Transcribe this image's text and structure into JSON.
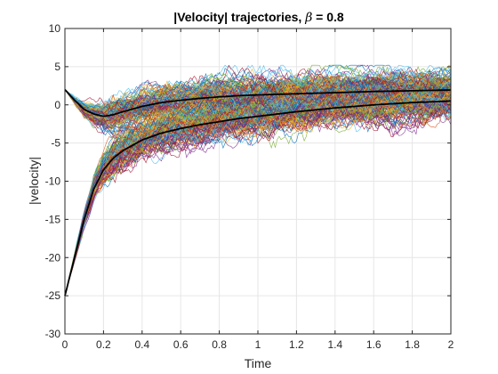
{
  "chart_data": {
    "type": "line",
    "title": {
      "prefix": "|Velocity| trajectories, ",
      "symbol": "β",
      "suffix": " = 0.8"
    },
    "xlabel": "Time",
    "ylabel": "|velocity|",
    "xlim": [
      0,
      2
    ],
    "ylim": [
      -30,
      10
    ],
    "xticks": [
      0,
      0.2,
      0.4,
      0.6,
      0.8,
      1,
      1.2,
      1.4,
      1.6,
      1.8,
      2
    ],
    "yticks": [
      -30,
      -25,
      -20,
      -15,
      -10,
      -5,
      0,
      5,
      10
    ],
    "xtick_labels": [
      "0",
      "0.2",
      "0.4",
      "0.6",
      "0.8",
      "1",
      "1.2",
      "1.4",
      "1.6",
      "1.8",
      "2"
    ],
    "ytick_labels": [
      "-30",
      "-25",
      "-20",
      "-15",
      "-10",
      "-5",
      "0",
      "5",
      "10"
    ],
    "grid": true,
    "colors": {
      "palette": [
        "#0072BD",
        "#D95319",
        "#EDB120",
        "#7E2F8E",
        "#77AC30",
        "#4DBEEE",
        "#A2142F"
      ],
      "mean": "#000000",
      "axis": "#262626",
      "grid": "#e6e6e6"
    },
    "bundles": [
      {
        "count": 120,
        "noise_amp": 1.1,
        "mean": {
          "x": [
            0,
            0.05,
            0.1,
            0.15,
            0.2,
            0.25,
            0.3,
            0.4,
            0.5,
            0.6,
            0.7,
            0.8,
            0.9,
            1.0,
            1.2,
            1.4,
            1.6,
            1.8,
            2.0
          ],
          "y": [
            2.0,
            0.6,
            -0.6,
            -1.2,
            -1.5,
            -1.3,
            -0.9,
            -0.2,
            0.3,
            0.6,
            0.85,
            1.05,
            1.2,
            1.3,
            1.45,
            1.6,
            1.75,
            1.85,
            1.95
          ]
        }
      },
      {
        "count": 120,
        "noise_amp": 1.3,
        "mean": {
          "x": [
            0,
            0.05,
            0.1,
            0.15,
            0.2,
            0.25,
            0.3,
            0.4,
            0.5,
            0.6,
            0.7,
            0.8,
            0.9,
            1.0,
            1.2,
            1.4,
            1.6,
            1.8,
            2.0
          ],
          "y": [
            -25.0,
            -20.0,
            -15.0,
            -11.0,
            -8.5,
            -7.0,
            -6.0,
            -4.6,
            -3.7,
            -3.1,
            -2.6,
            -2.2,
            -1.8,
            -1.5,
            -0.9,
            -0.4,
            0.0,
            0.3,
            0.5
          ]
        }
      }
    ]
  }
}
